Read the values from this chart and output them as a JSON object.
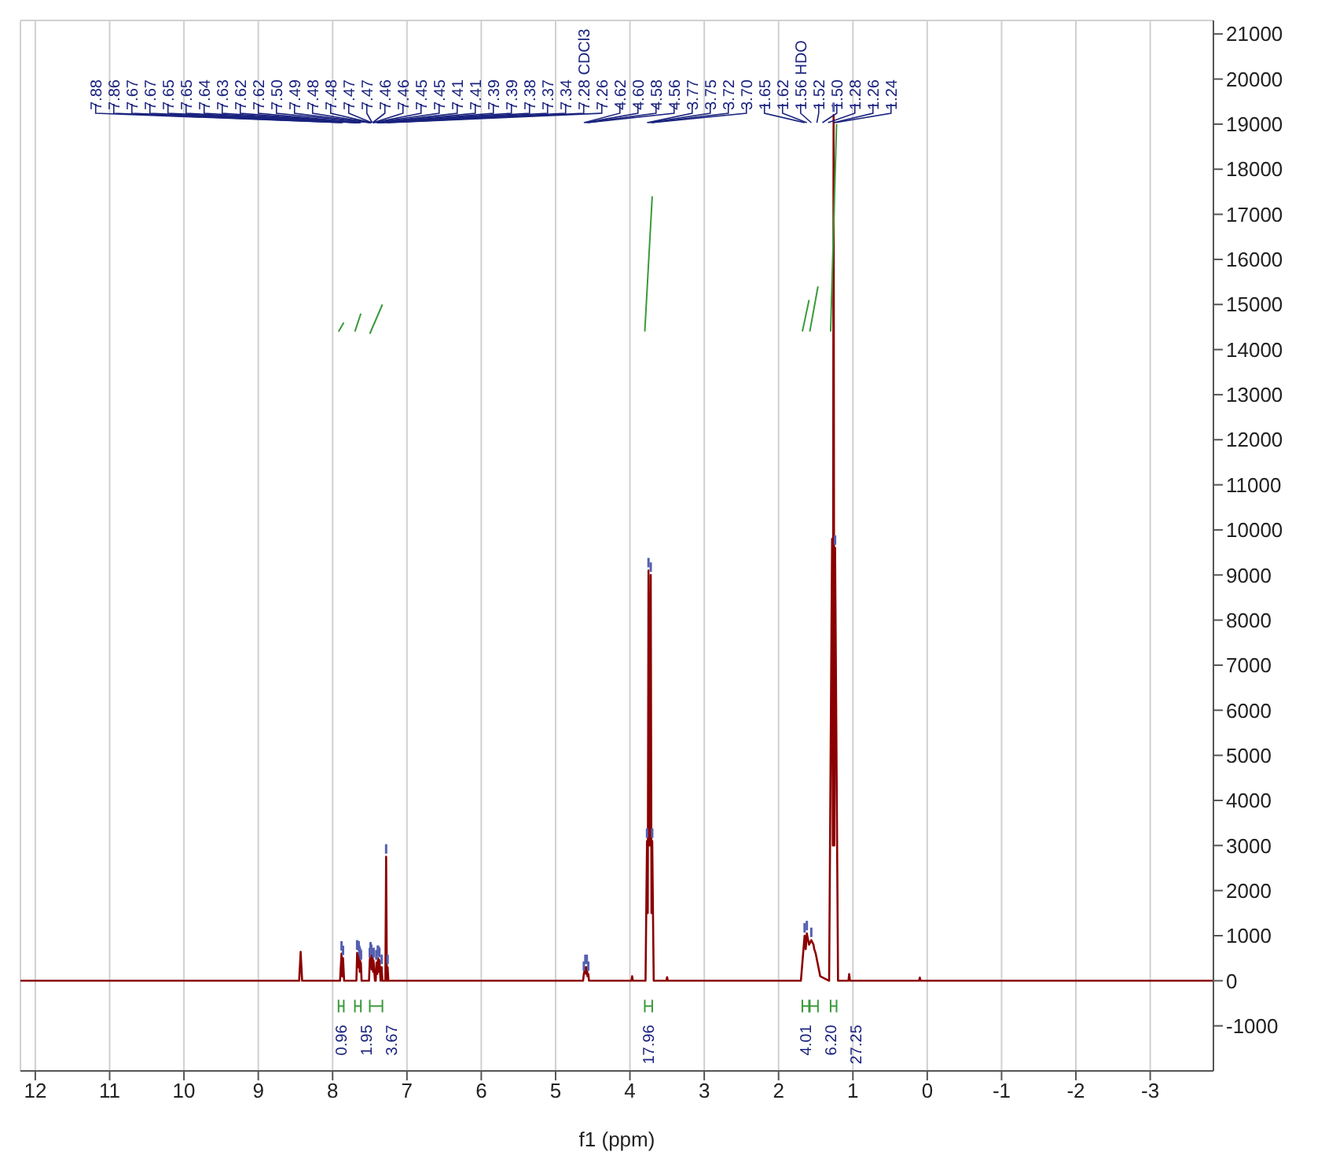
{
  "chart_data": {
    "type": "line",
    "xlabel": "f1 (ppm)",
    "xlim": [
      12.2,
      -3.85
    ],
    "ylim": [
      -2000,
      21300
    ],
    "xticks": [
      12,
      11,
      10,
      9,
      8,
      7,
      6,
      5,
      4,
      3,
      2,
      1,
      0,
      -1,
      -2,
      -3
    ],
    "yticks": [
      -1000,
      0,
      1000,
      2000,
      3000,
      4000,
      5000,
      6000,
      7000,
      8000,
      9000,
      10000,
      11000,
      12000,
      13000,
      14000,
      15000,
      16000,
      17000,
      18000,
      19000,
      20000,
      21000
    ],
    "grid": true,
    "marker": "none",
    "line_style": "solid",
    "series": [
      {
        "color": "#8b0000",
        "x": [
          12.2,
          8.45,
          8.43,
          8.41,
          7.9,
          7.88,
          7.87,
          7.86,
          7.845,
          7.68,
          7.67,
          7.66,
          7.65,
          7.645,
          7.64,
          7.635,
          7.63,
          7.625,
          7.62,
          7.61,
          7.51,
          7.5,
          7.49,
          7.48,
          7.475,
          7.47,
          7.465,
          7.46,
          7.455,
          7.45,
          7.43,
          7.42,
          7.41,
          7.4,
          7.39,
          7.385,
          7.38,
          7.37,
          7.355,
          7.34,
          7.33,
          7.29,
          7.28,
          7.27,
          7.26,
          7.25,
          4.63,
          4.62,
          4.6,
          4.59,
          4.58,
          4.57,
          4.56,
          4.55,
          3.98,
          3.97,
          3.96,
          3.79,
          3.77,
          3.76,
          3.75,
          3.735,
          3.72,
          3.71,
          3.7,
          3.68,
          3.51,
          3.5,
          3.49,
          1.7,
          1.65,
          1.635,
          1.62,
          1.59,
          1.56,
          1.53,
          1.52,
          1.5,
          1.44,
          1.32,
          1.28,
          1.27,
          1.26,
          1.25,
          1.24,
          1.2,
          1.06,
          1.05,
          1.04,
          0.11,
          0.1,
          0.09,
          -3.85
        ],
        "values": [
          0,
          0,
          640,
          0,
          0,
          600,
          100,
          500,
          0,
          0,
          620,
          300,
          600,
          300,
          500,
          200,
          450,
          200,
          400,
          0,
          0,
          450,
          580,
          520,
          250,
          560,
          250,
          500,
          200,
          450,
          0,
          0,
          400,
          150,
          500,
          200,
          480,
          450,
          0,
          300,
          0,
          0,
          2750,
          0,
          300,
          0,
          0,
          150,
          300,
          150,
          300,
          100,
          150,
          0,
          0,
          100,
          0,
          0,
          3100,
          1500,
          9100,
          3000,
          9000,
          1500,
          3100,
          0,
          0,
          80,
          0,
          0,
          1000,
          700,
          1050,
          800,
          900,
          800,
          700,
          600,
          100,
          0,
          9800,
          3000,
          19200,
          3000,
          9600,
          0,
          0,
          150,
          0,
          0,
          70,
          0,
          0
        ]
      },
      {
        "color": "#3a9a3a",
        "x": [
          7.92,
          7.85
        ],
        "values": [
          14400,
          14600
        ]
      },
      {
        "color": "#3a9a3a",
        "x": [
          7.7,
          7.62
        ],
        "values": [
          14400,
          14800
        ]
      },
      {
        "color": "#3a9a3a",
        "x": [
          7.5,
          7.33
        ],
        "values": [
          14350,
          15000
        ]
      },
      {
        "color": "#3a9a3a",
        "x": [
          3.8,
          3.7
        ],
        "values": [
          14400,
          17400
        ]
      },
      {
        "color": "#3a9a3a",
        "x": [
          1.68,
          1.59
        ],
        "values": [
          14400,
          15100
        ]
      },
      {
        "color": "#3a9a3a",
        "x": [
          1.58,
          1.47
        ],
        "values": [
          14400,
          15400
        ]
      },
      {
        "color": "#3a9a3a",
        "x": [
          1.3,
          1.22
        ],
        "values": [
          14400,
          19000
        ]
      }
    ],
    "annotations": [
      {
        "text": "7.88",
        "x": 7.88
      },
      {
        "text": "7.86",
        "x": 7.86
      },
      {
        "text": "7.67",
        "x": 7.67
      },
      {
        "text": "7.67",
        "x": 7.67
      },
      {
        "text": "7.65",
        "x": 7.65
      },
      {
        "text": "7.65",
        "x": 7.65
      },
      {
        "text": "7.64",
        "x": 7.64
      },
      {
        "text": "7.63",
        "x": 7.63
      },
      {
        "text": "7.62",
        "x": 7.62
      },
      {
        "text": "7.62",
        "x": 7.62
      },
      {
        "text": "7.50",
        "x": 7.5
      },
      {
        "text": "7.49",
        "x": 7.49
      },
      {
        "text": "7.48",
        "x": 7.48
      },
      {
        "text": "7.48",
        "x": 7.48
      },
      "7.47",
      "7.47",
      "7.46",
      "7.46",
      {
        "text": "7.45",
        "x": 7.45
      },
      {
        "text": "7.45",
        "x": 7.45
      },
      {
        "text": "7.41",
        "x": 7.41
      },
      {
        "text": "7.41",
        "x": 7.41
      },
      {
        "text": "7.39",
        "x": 7.39
      },
      {
        "text": "7.39",
        "x": 7.39
      },
      {
        "text": "7.38",
        "x": 7.38
      },
      {
        "text": "7.37",
        "x": 7.37
      },
      {
        "text": "7.34",
        "x": 7.34
      },
      {
        "text": "7.28 CDCl3",
        "x": 7.28
      },
      {
        "text": "7.26",
        "x": 7.26
      },
      {
        "text": "4.62",
        "x": 4.62
      },
      {
        "text": "4.60",
        "x": 4.6
      },
      {
        "text": "4.58",
        "x": 4.58
      },
      {
        "text": "4.56",
        "x": 4.56
      },
      {
        "text": "3.77",
        "x": 3.77
      },
      {
        "text": "3.75",
        "x": 3.75
      },
      {
        "text": "3.72",
        "x": 3.72
      },
      {
        "text": "3.70",
        "x": 3.7
      },
      {
        "text": "1.65",
        "x": 1.65
      },
      {
        "text": "1.62",
        "x": 1.62
      },
      {
        "text": "1.56 HDO",
        "x": 1.56
      },
      "1.52",
      "1.50",
      "1.28",
      {
        "text": "1.26",
        "x": 1.26
      },
      {
        "text": "1.24",
        "x": 1.24
      },
      "0.96",
      "1.95",
      "3.67",
      "17.96",
      "4.01",
      "6.20",
      "27.25"
    ]
  }
}
